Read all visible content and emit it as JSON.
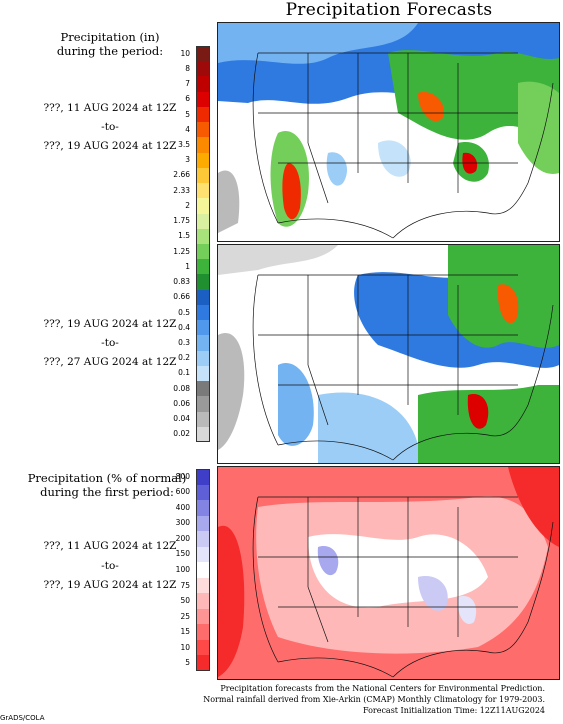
{
  "title": "Precipitation Forecasts",
  "left_panel": {
    "precip_header_line1": "Precipitation (in)",
    "precip_header_line2": "during the period:",
    "period1": {
      "start": "???, 11 AUG 2024 at 12Z",
      "sep": "-to-",
      "end": "???, 19 AUG 2024 at 12Z"
    },
    "period2": {
      "start": "???, 19 AUG 2024 at 12Z",
      "sep": "-to-",
      "end": "???, 27 AUG 2024 at 12Z"
    },
    "pct_header_line1": "Precipitation (% of normal)",
    "pct_header_line2": "during the first period:",
    "period3": {
      "start": "???, 11 AUG 2024 at 12Z",
      "sep": "-to-",
      "end": "???, 19 AUG 2024 at 12Z"
    }
  },
  "precip_scale": {
    "labels": [
      "10",
      "8",
      "7",
      "6",
      "5",
      "4",
      "3.5",
      "3",
      "2.66",
      "2.33",
      "2",
      "1.75",
      "1.5",
      "1.25",
      "1",
      "0.83",
      "0.66",
      "0.5",
      "0.4",
      "0.3",
      "0.2",
      "0.1",
      "0.08",
      "0.06",
      "0.04",
      "0.02"
    ],
    "colors": [
      "#7a1a14",
      "#9e0a0a",
      "#be0000",
      "#dd0000",
      "#f02a00",
      "#f75a00",
      "#fb8a00",
      "#fdab00",
      "#fdc838",
      "#fde070",
      "#f5f59a",
      "#d8f0a0",
      "#a8e27a",
      "#74cf5a",
      "#3db33c",
      "#1f8f2f",
      "#1b5fc2",
      "#2f7ae0",
      "#4f98ec",
      "#73b3f2",
      "#9ccdf6",
      "#c4e2fa",
      "#7a7a7a",
      "#9a9a9a",
      "#bababa",
      "#d9d9d9"
    ]
  },
  "pct_scale": {
    "labels": [
      "800",
      "600",
      "400",
      "300",
      "200",
      "150",
      "100",
      "75",
      "50",
      "25",
      "15",
      "10",
      "5"
    ],
    "colors": [
      "#3e3ec8",
      "#5f5fd8",
      "#8383e4",
      "#a8a8ee",
      "#cacaf4",
      "#e4e4fa",
      "#ffffff",
      "#ffdcdc",
      "#ffb8b8",
      "#ff9494",
      "#ff6c6c",
      "#ff4848",
      "#f52a2a"
    ]
  },
  "footer": {
    "line1": "Precipitation forecasts from the National Centers for Environmental Prediction.",
    "line2": "Normal rainfall derived from Xie-Arkin (CMAP) Monthly Climatology for 1979-2003.",
    "line3": "Forecast Initialization Time: 12Z11AUG2024"
  },
  "credit": "GrADS/COLA"
}
